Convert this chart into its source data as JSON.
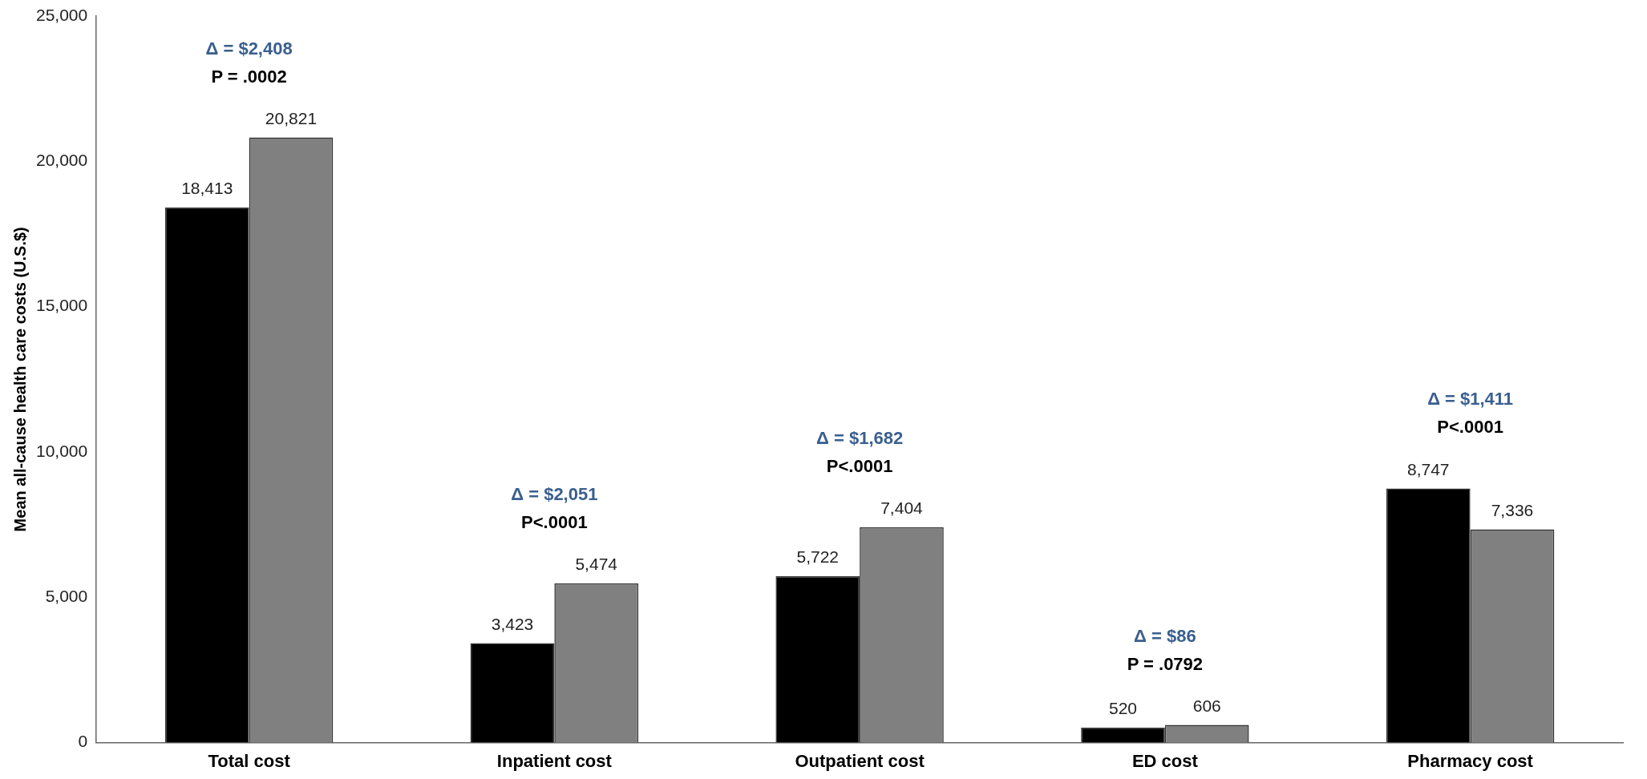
{
  "chart_data": {
    "type": "bar",
    "ylabel": "Mean all-cause health care costs (U.S.$)",
    "categories": [
      "Total cost",
      "Inpatient cost",
      "Outpatient cost",
      "ED cost",
      "Pharmacy cost"
    ],
    "series": [
      {
        "color": "#000000",
        "values": [
          18413,
          3423,
          5722,
          520,
          8747
        ],
        "value_labels": [
          "18,413",
          "3,423",
          "5,722",
          "520",
          "8,747"
        ]
      },
      {
        "color": "#808080",
        "values": [
          20821,
          5474,
          7404,
          606,
          7336
        ],
        "value_labels": [
          "20,821",
          "5,474",
          "7,404",
          "606",
          "7,336"
        ]
      }
    ],
    "ylim": [
      0,
      25000
    ],
    "yticks": [
      {
        "value": 0,
        "label": "0"
      },
      {
        "value": 5000,
        "label": "5,000"
      },
      {
        "value": 10000,
        "label": "10,000"
      },
      {
        "value": 15000,
        "label": "15,000"
      },
      {
        "value": 20000,
        "label": "20,000"
      },
      {
        "value": 25000,
        "label": "25,000"
      }
    ],
    "grid": false,
    "legend": false,
    "annotations": [
      "Δ = $2,408",
      "P = .0002",
      "Δ = $2,051",
      "P<.0001",
      "Δ = $1,682",
      "P<.0001",
      "Δ = $86",
      "P = .0792",
      "Δ = $1,411",
      "P<.0001"
    ]
  }
}
